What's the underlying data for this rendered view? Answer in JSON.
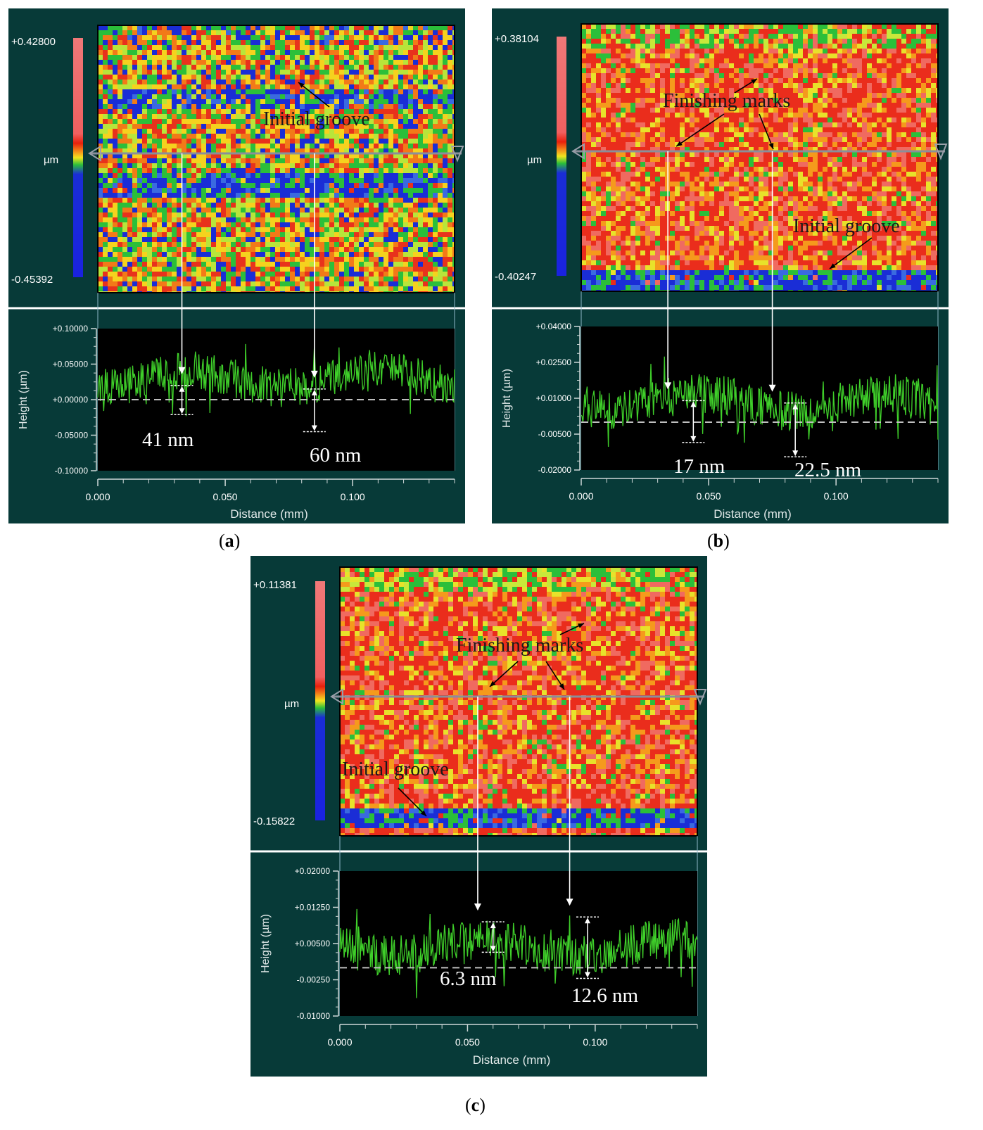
{
  "chart_data": [
    {
      "type": "line",
      "panel_label": "a",
      "colorbar": {
        "max_label": "+0.42800",
        "min_label": "-0.45392",
        "unit_label": "µm"
      },
      "map_annotations": [
        "Initial groove"
      ],
      "profile": {
        "xlabel": "Distance (mm)",
        "ylabel": "Height (µm)",
        "xlim": [
          0,
          0.14
        ],
        "ylim": [
          -0.1,
          0.1
        ],
        "x_ticks": [
          "0.000",
          "0.050",
          "0.100"
        ],
        "y_ticks": [
          "+0.10000",
          "+0.05000",
          "+0.00000",
          "-0.05000",
          "-0.10000"
        ],
        "mean_line": 0.0,
        "grid": false
      },
      "measurements": [
        {
          "label": "41 nm",
          "x": 0.033,
          "top": 0.02,
          "bottom": -0.021
        },
        {
          "label": "60 nm",
          "x": 0.085,
          "top": 0.015,
          "bottom": -0.045
        }
      ],
      "colors": {
        "background": "#073a38",
        "plot": "#000000",
        "line": "#3fcf2a"
      }
    },
    {
      "type": "line",
      "panel_label": "b",
      "colorbar": {
        "max_label": "+0.38104",
        "min_label": "-0.40247",
        "unit_label": "µm"
      },
      "map_annotations": [
        "Finishing marks",
        "Initial groove"
      ],
      "profile": {
        "xlabel": "Distance (mm)",
        "ylabel": "Height (µm)",
        "xlim": [
          0,
          0.14
        ],
        "ylim": [
          -0.02,
          0.04
        ],
        "x_ticks": [
          "0.000",
          "0.050",
          "0.100"
        ],
        "y_ticks": [
          "+0.04000",
          "+0.02500",
          "+0.01000",
          "-0.00500",
          "-0.02000"
        ],
        "mean_line": 0.0,
        "grid": false
      },
      "measurements": [
        {
          "label": "17 nm",
          "x": 0.044,
          "top": 0.009,
          "bottom": -0.0085
        },
        {
          "label": "22.5 nm",
          "x": 0.084,
          "top": 0.008,
          "bottom": -0.0145
        }
      ],
      "colors": {
        "background": "#073a38",
        "plot": "#000000",
        "line": "#3fcf2a"
      }
    },
    {
      "type": "line",
      "panel_label": "c",
      "colorbar": {
        "max_label": "+0.11381",
        "min_label": "-0.15822",
        "unit_label": "µm"
      },
      "map_annotations": [
        "Finishing marks",
        "Initial groove"
      ],
      "profile": {
        "xlabel": "Distance (mm)",
        "ylabel": "Height (µm)",
        "xlim": [
          0,
          0.14
        ],
        "ylim": [
          -0.01,
          0.02
        ],
        "x_ticks": [
          "0.000",
          "0.050",
          "0.100"
        ],
        "y_ticks": [
          "+0.02000",
          "+0.01250",
          "+0.00500",
          "-0.00250",
          "-0.01000"
        ],
        "mean_line": 0.0,
        "grid": false
      },
      "measurements": [
        {
          "label": "6.3 nm",
          "x": 0.06,
          "top": 0.0095,
          "bottom": 0.0032
        },
        {
          "label": "12.6 nm",
          "x": 0.097,
          "top": 0.0105,
          "bottom": -0.0022
        }
      ],
      "colors": {
        "background": "#073a38",
        "plot": "#000000",
        "line": "#3fcf2a"
      }
    }
  ]
}
